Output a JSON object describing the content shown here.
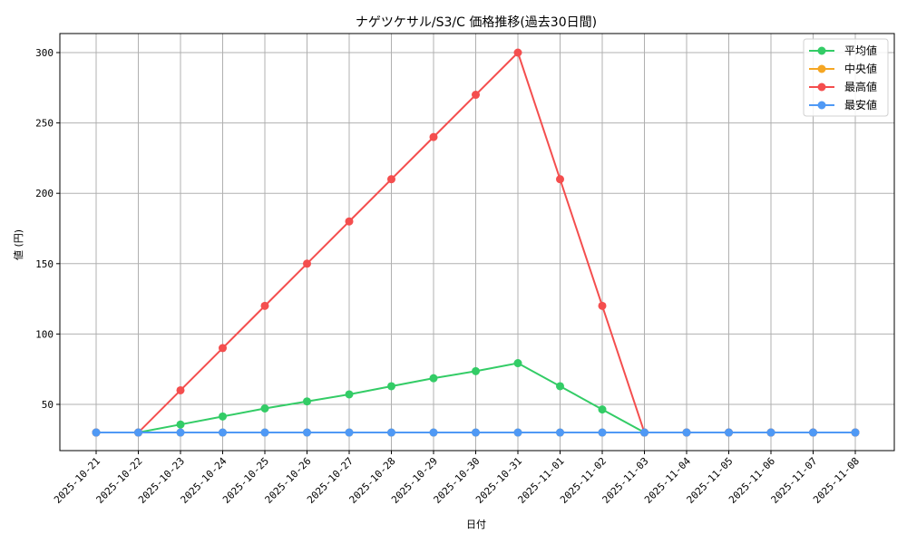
{
  "chart_data": {
    "type": "line",
    "title": "ナゲツケサル/S3/C 価格推移(過去30日間)",
    "xlabel": "日付",
    "ylabel": "値 (円)",
    "ylim": [
      16,
      314
    ],
    "yticks": [
      50,
      100,
      150,
      200,
      250,
      300
    ],
    "grid": true,
    "legend_position": "upper right",
    "categories": [
      "2025-10-21",
      "2025-10-22",
      "2025-10-23",
      "2025-10-24",
      "2025-10-25",
      "2025-10-26",
      "2025-10-27",
      "2025-10-28",
      "2025-10-29",
      "2025-10-30",
      "2025-10-31",
      "2025-11-01",
      "2025-11-02",
      "2025-11-03",
      "2025-11-04",
      "2025-11-05",
      "2025-11-06",
      "2025-11-07",
      "2025-11-08"
    ],
    "series": [
      {
        "name": "平均値",
        "color": "#33cc66",
        "values": [
          30,
          30,
          35.7,
          41.4,
          47.1,
          52.1,
          57.1,
          62.9,
          68.6,
          73.6,
          79.3,
          62.9,
          46.4,
          30,
          30,
          30,
          30,
          30,
          30
        ]
      },
      {
        "name": "中央値",
        "color": "#f5a623",
        "values": [
          30,
          30,
          30,
          30,
          30,
          30,
          30,
          30,
          30,
          30,
          30,
          30,
          30,
          30,
          30,
          30,
          30,
          30,
          30
        ]
      },
      {
        "name": "最高値",
        "color": "#f44e4e",
        "values": [
          30,
          30,
          60,
          90,
          120,
          150,
          180,
          210,
          240,
          270,
          300,
          210,
          120,
          30,
          30,
          30,
          30,
          30,
          30
        ]
      },
      {
        "name": "最安値",
        "color": "#4f99f5",
        "values": [
          30,
          30,
          30,
          30,
          30,
          30,
          30,
          30,
          30,
          30,
          30,
          30,
          30,
          30,
          30,
          30,
          30,
          30,
          30
        ]
      }
    ]
  }
}
